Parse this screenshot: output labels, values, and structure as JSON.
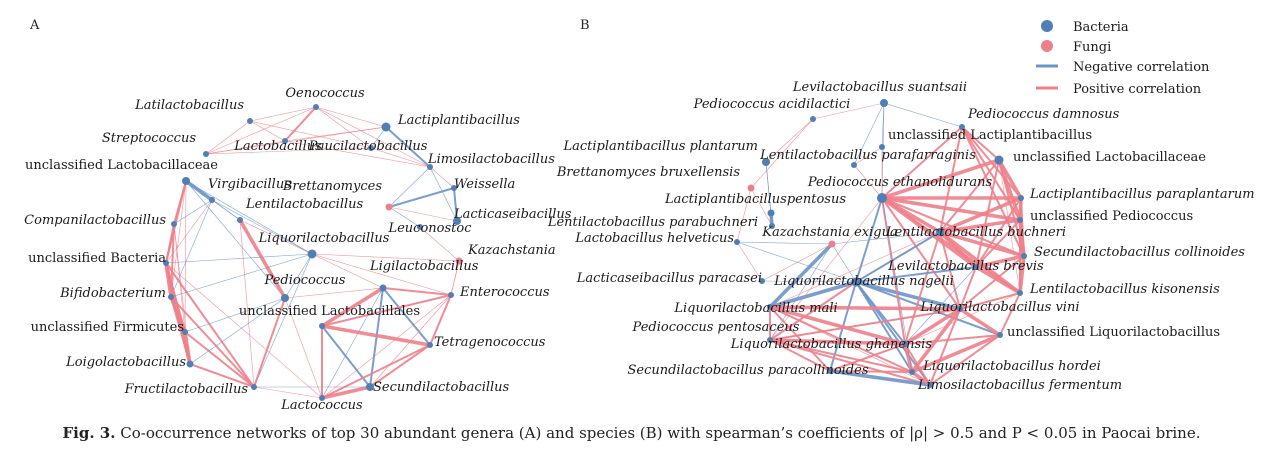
{
  "panels": [
    {
      "letter": "A",
      "nodes": [
        {
          "id": "oeno",
          "label": "Oenococcus",
          "type": "bacteria",
          "italic": true
        },
        {
          "id": "latil",
          "label": "Latilactobacillus",
          "type": "bacteria",
          "italic": true
        },
        {
          "id": "lactip",
          "label": "Lactiplantibacillus",
          "type": "bacteria",
          "italic": true
        },
        {
          "id": "strep",
          "label": "Streptococcus",
          "type": "bacteria",
          "italic": true
        },
        {
          "id": "lactob",
          "label": "Lactobacillus",
          "type": "bacteria",
          "italic": true
        },
        {
          "id": "pauci",
          "label": "Paucilactobacillus",
          "type": "bacteria",
          "italic": true
        },
        {
          "id": "limosi",
          "label": "Limosilactobacillus",
          "type": "bacteria",
          "italic": true
        },
        {
          "id": "unclLb",
          "label": "unclassified Lactobacillaceae",
          "type": "bacteria",
          "italic": false
        },
        {
          "id": "virgi",
          "label": "Virgibacillus",
          "type": "bacteria",
          "italic": true
        },
        {
          "id": "brett",
          "label": "Brettanomyces",
          "type": "fungi",
          "italic": true
        },
        {
          "id": "weiss",
          "label": "Weissella",
          "type": "bacteria",
          "italic": true
        },
        {
          "id": "compa",
          "label": "Companilactobacillus",
          "type": "bacteria",
          "italic": true
        },
        {
          "id": "lenti",
          "label": "Lentilactobacillus",
          "type": "bacteria",
          "italic": true
        },
        {
          "id": "lacticas",
          "label": "Lacticaseibacillus",
          "type": "bacteria",
          "italic": true
        },
        {
          "id": "leuco",
          "label": "Leuconostoc",
          "type": "bacteria",
          "italic": true
        },
        {
          "id": "liquori",
          "label": "Liquorilactobacillus",
          "type": "bacteria",
          "italic": true
        },
        {
          "id": "kazach",
          "label": "Kazachstania",
          "type": "fungi",
          "italic": true
        },
        {
          "id": "unclBac",
          "label": "unclassified Bacteria",
          "type": "bacteria",
          "italic": false
        },
        {
          "id": "ligil",
          "label": "Ligilactobacillus",
          "type": "bacteria",
          "italic": true
        },
        {
          "id": "entero",
          "label": "Enterococcus",
          "type": "bacteria",
          "italic": true
        },
        {
          "id": "bifido",
          "label": "Bifidobacterium",
          "type": "bacteria",
          "italic": true
        },
        {
          "id": "pedio",
          "label": "Pediococcus",
          "type": "bacteria",
          "italic": true
        },
        {
          "id": "unclLac",
          "label": "unclassified Lactobacillales",
          "type": "bacteria",
          "italic": false
        },
        {
          "id": "unclFirm",
          "label": "unclassified Firmicutes",
          "type": "bacteria",
          "italic": false
        },
        {
          "id": "tetra",
          "label": "Tetragenococcus",
          "type": "bacteria",
          "italic": true
        },
        {
          "id": "loigo",
          "label": "Loigolactobacillus",
          "type": "bacteria",
          "italic": true
        },
        {
          "id": "fructi",
          "label": "Fructilactobacillus",
          "type": "bacteria",
          "italic": true
        },
        {
          "id": "secund",
          "label": "Secundilactobacillus",
          "type": "bacteria",
          "italic": true
        },
        {
          "id": "lacto",
          "label": "Lactococcus",
          "type": "bacteria",
          "italic": true
        }
      ]
    },
    {
      "letter": "B",
      "nodes": [
        {
          "id": "suant",
          "label": "Levilactobacillus suantsaii",
          "type": "bacteria",
          "italic": true
        },
        {
          "id": "pacid",
          "label": "Pediococcus acidilactici",
          "type": "bacteria",
          "italic": true
        },
        {
          "id": "pdamn",
          "label": "Pediococcus damnosus",
          "type": "bacteria",
          "italic": true
        },
        {
          "id": "unclLp",
          "label": "unclassified Lactiplantibacillus",
          "type": "bacteria",
          "italic": false
        },
        {
          "id": "lplant",
          "label": "Lactiplantibacillus plantarum",
          "type": "bacteria",
          "italic": true
        },
        {
          "id": "lparaf",
          "label": "Lentilactobacillus parafarraginis",
          "type": "bacteria",
          "italic": true
        },
        {
          "id": "unclLbB",
          "label": "unclassified Lactobacillaceae",
          "type": "bacteria",
          "italic": false
        },
        {
          "id": "bbrux",
          "label": "Brettanomyces bruxellensis",
          "type": "fungi",
          "italic": true
        },
        {
          "id": "pethan",
          "label": "Pediococcus ethanolidurans",
          "type": "bacteria",
          "italic": true
        },
        {
          "id": "lparap",
          "label": "Lactiplantibacillus paraplantarum",
          "type": "bacteria",
          "italic": true
        },
        {
          "id": "lpento",
          "label": "Lactiplantibacilluspentosus",
          "type": "bacteria",
          "italic": true
        },
        {
          "id": "unclPed",
          "label": "unclassified Pediococcus",
          "type": "bacteria",
          "italic": false
        },
        {
          "id": "lparab",
          "label": "Lentilactobacillus parabuchneri",
          "type": "bacteria",
          "italic": true
        },
        {
          "id": "lhelv",
          "label": "Lactobacillus helveticus",
          "type": "bacteria",
          "italic": true
        },
        {
          "id": "kexig",
          "label": "Kazachstania exigua",
          "type": "fungi",
          "italic": true
        },
        {
          "id": "lbuch",
          "label": "Lentilactobacillus buchneri",
          "type": "bacteria",
          "italic": true
        },
        {
          "id": "scolli",
          "label": "Secundilactobacillus collinoides",
          "type": "bacteria",
          "italic": true
        },
        {
          "id": "lbrev",
          "label": "Levilactobacillus brevis",
          "type": "bacteria",
          "italic": true
        },
        {
          "id": "lcpara",
          "label": "Lacticaseibacillus paracasei",
          "type": "bacteria",
          "italic": true
        },
        {
          "id": "lnage",
          "label": "Liquorilactobacillus nagelii",
          "type": "bacteria",
          "italic": true
        },
        {
          "id": "lkiso",
          "label": "Lentilactobacillus kisonensis",
          "type": "bacteria",
          "italic": true
        },
        {
          "id": "lmali",
          "label": "Liquorilactobacillus mali",
          "type": "bacteria",
          "italic": true
        },
        {
          "id": "lvini",
          "label": "Liquorilactobacillus vini",
          "type": "bacteria",
          "italic": true
        },
        {
          "id": "ppent",
          "label": "Pediococcus pentosaceus",
          "type": "bacteria",
          "italic": true
        },
        {
          "id": "unclLq",
          "label": "unclassified Liquorilactobacillus",
          "type": "bacteria",
          "italic": false
        },
        {
          "id": "lghan",
          "label": "Liquorilactobacillus ghanensis",
          "type": "bacteria",
          "italic": true
        },
        {
          "id": "spcol",
          "label": "Secundilactobacillus paracollinoides",
          "type": "bacteria",
          "italic": true
        },
        {
          "id": "lhord",
          "label": "Liquorilactobacillus hordei",
          "type": "bacteria",
          "italic": true
        },
        {
          "id": "lferm",
          "label": "Limosilactobacillus fermentum",
          "type": "bacteria",
          "italic": true
        }
      ]
    }
  ],
  "legend": {
    "items": [
      {
        "label": "Bacteria",
        "kind": "node",
        "color": "#4f7fb5"
      },
      {
        "label": "Fungi",
        "kind": "node",
        "color": "#ee8089"
      },
      {
        "label": "Negative correlation",
        "kind": "edge",
        "color": "#6b95c9"
      },
      {
        "label": "Positive correlation",
        "kind": "edge",
        "color": "#ee8089"
      }
    ]
  },
  "colors": {
    "bacteria": "#4f7fb5",
    "fungi": "#ee8089",
    "negative": "#6b95c9",
    "positive": "#ee8089"
  },
  "caption": {
    "label": "Fig. 3.",
    "text": " Co-occurrence networks of top 30 abundant genera (A) and species (B) with spearman’s coefficients of |ρ| > 0.5 and P < 0.05 in Paocai brine."
  }
}
